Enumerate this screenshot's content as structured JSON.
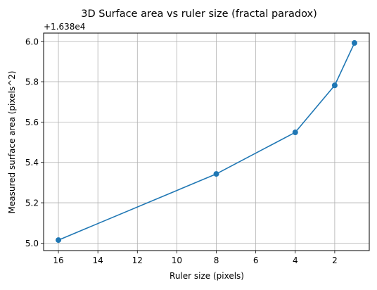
{
  "chart_data": {
    "type": "line",
    "title": "3D Surface area vs ruler size (fractal paradox)",
    "xlabel": "Ruler size (pixels)",
    "ylabel": "Measured surface area (pixels^2)",
    "y_offset_text": "+1.638e4",
    "y_offset_value": 16380,
    "x_inverted": true,
    "xlim": [
      16.75,
      0.25
    ],
    "ylim": [
      4.963,
      6.041
    ],
    "x_ticks": [
      16,
      14,
      12,
      10,
      8,
      6,
      4,
      2
    ],
    "x_tick_labels": [
      "16",
      "14",
      "12",
      "10",
      "8",
      "6",
      "4",
      "2"
    ],
    "y_ticks": [
      5.0,
      5.2,
      5.4,
      5.6,
      5.8,
      6.0
    ],
    "y_tick_labels": [
      "5.0",
      "5.2",
      "5.4",
      "5.6",
      "5.8",
      "6.0"
    ],
    "grid": true,
    "line_color": "#1f77b4",
    "marker": "circle",
    "series": [
      {
        "x": [
          16,
          8,
          4,
          2,
          1
        ],
        "y": [
          5.015,
          5.343,
          5.549,
          5.782,
          5.992
        ]
      }
    ]
  }
}
